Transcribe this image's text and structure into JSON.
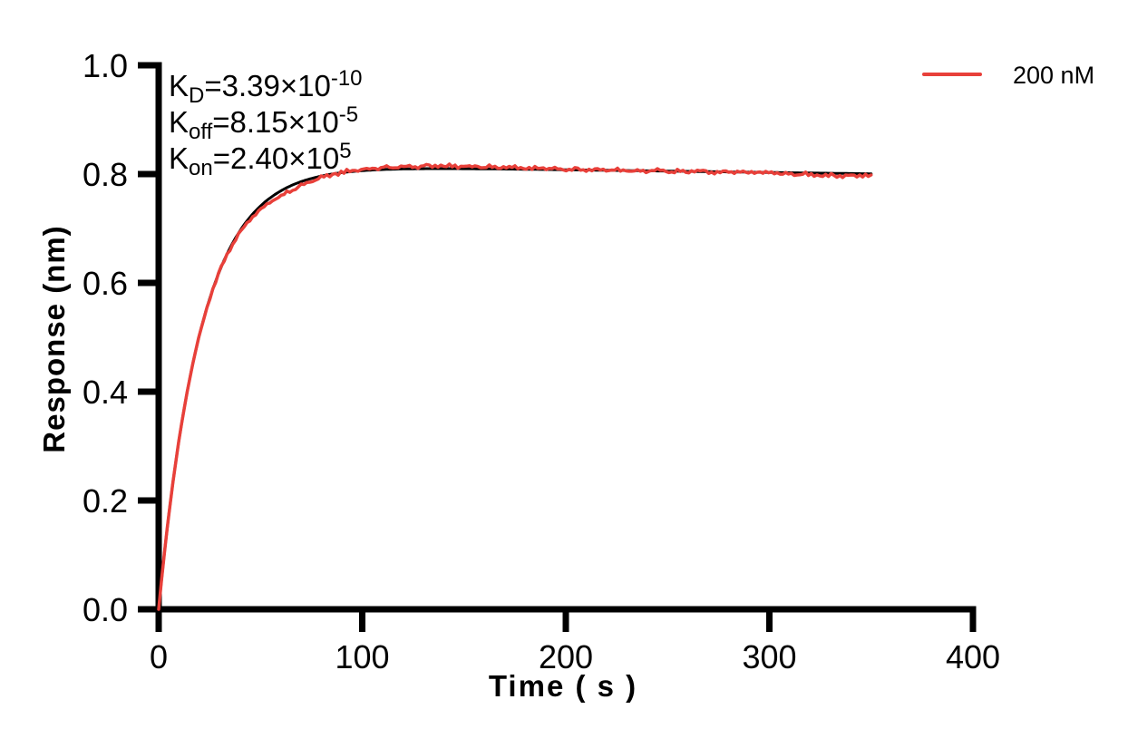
{
  "chart_data": {
    "type": "line",
    "title": "",
    "xlabel": "Time ( s )",
    "ylabel": "Response (nm)",
    "xlim": [
      0,
      400
    ],
    "ylim": [
      0,
      1.0
    ],
    "xticks": [
      0,
      100,
      200,
      300,
      400
    ],
    "xtick_labels": [
      "0",
      "100",
      "200",
      "300",
      "400"
    ],
    "yticks": [
      0,
      0.2,
      0.4,
      0.6,
      0.8,
      1.0
    ],
    "ytick_labels": [
      "0.0",
      "0.2",
      "0.4",
      "0.6",
      "0.8",
      "1.0"
    ],
    "grid": false,
    "legend": {
      "position": "top-right",
      "entries": [
        {
          "label": "200 nM",
          "color": "#E8403A"
        }
      ]
    },
    "annotations": [
      {
        "k": "K",
        "sub": "D",
        "value": "=3.39×10",
        "sup": "-10"
      },
      {
        "k": "K",
        "sub": "off",
        "value": "=8.15×10",
        "sup": "-5"
      },
      {
        "k": "K",
        "sub": "on",
        "value": "=2.40×10",
        "sup": "5"
      }
    ],
    "kinetics": {
      "KD": 3.39e-10,
      "Koff": 8.15e-05,
      "Kon": 240000.0
    },
    "plateau_response": 0.81,
    "series": [
      {
        "name": "fit",
        "color": "#000000",
        "width": 3,
        "t_end": 350,
        "step": 1,
        "model": {
          "rmax": 0.818,
          "kobs": 0.048,
          "drift": -5e-05
        },
        "noise": 0,
        "deviations": []
      },
      {
        "name": "200 nM",
        "color": "#E8403A",
        "width": 3.5,
        "t_end": 350,
        "step": 1.4,
        "model": {
          "rmax": 0.818,
          "kobs": 0.048,
          "drift": -5e-05
        },
        "noise": 0.0032,
        "deviations": [
          {
            "amp": -0.009,
            "center": 62,
            "width": 20
          },
          {
            "amp": 0.005,
            "center": 140,
            "width": 45
          },
          {
            "amp": -0.004,
            "center": 335,
            "width": 28
          }
        ]
      }
    ],
    "fit_points": {
      "t": [
        0,
        25,
        50,
        75,
        100,
        150,
        200,
        250,
        300,
        350
      ],
      "response": [
        0,
        0.57,
        0.741,
        0.792,
        0.806,
        0.81,
        0.808,
        0.805,
        0.803,
        0.8
      ]
    }
  }
}
